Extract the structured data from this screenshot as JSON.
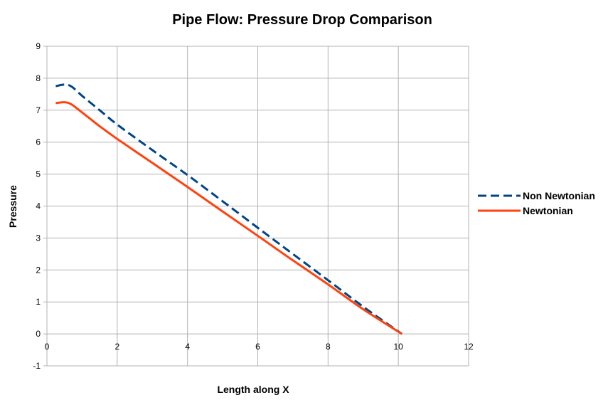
{
  "chart_data": {
    "type": "line",
    "title": "Pipe Flow: Pressure Drop Comparison",
    "xlabel": "Length along X",
    "ylabel": "Pressure",
    "xlim": [
      0,
      12
    ],
    "ylim": [
      -1,
      9
    ],
    "x_ticks": [
      0,
      2,
      4,
      6,
      8,
      10,
      12
    ],
    "y_ticks": [
      -1,
      0,
      1,
      2,
      3,
      4,
      5,
      6,
      7,
      8,
      9
    ],
    "grid": true,
    "legend_position": "right",
    "series": [
      {
        "name": "Non Newtonian",
        "color": "#004586",
        "style": "dashed",
        "points": [
          [
            0.25,
            7.75
          ],
          [
            0.5,
            7.8
          ],
          [
            0.7,
            7.74
          ],
          [
            1.0,
            7.45
          ],
          [
            1.5,
            7.0
          ],
          [
            2,
            6.55
          ],
          [
            3,
            5.75
          ],
          [
            4,
            4.97
          ],
          [
            5,
            4.15
          ],
          [
            6,
            3.32
          ],
          [
            7,
            2.5
          ],
          [
            8,
            1.68
          ],
          [
            9,
            0.85
          ],
          [
            10.1,
            0.0
          ]
        ]
      },
      {
        "name": "Newtonian",
        "color": "#ff420e",
        "style": "solid",
        "points": [
          [
            0.25,
            7.22
          ],
          [
            0.5,
            7.25
          ],
          [
            0.7,
            7.18
          ],
          [
            1.0,
            6.93
          ],
          [
            1.5,
            6.5
          ],
          [
            2,
            6.1
          ],
          [
            3,
            5.35
          ],
          [
            4,
            4.6
          ],
          [
            5,
            3.83
          ],
          [
            6,
            3.07
          ],
          [
            7,
            2.3
          ],
          [
            8,
            1.55
          ],
          [
            9,
            0.77
          ],
          [
            10.1,
            0.0
          ]
        ]
      }
    ]
  }
}
